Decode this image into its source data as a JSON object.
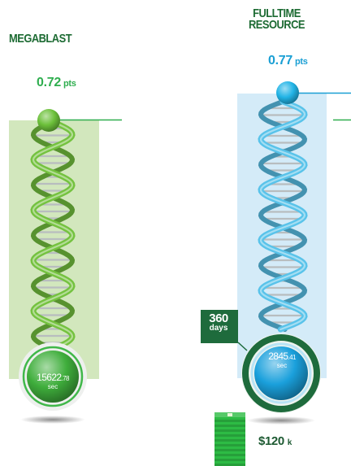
{
  "columns": [
    {
      "name_lines": [
        "MEGABLAST"
      ],
      "score_value": "0.72",
      "score_unit": "pts",
      "time_whole": "15622",
      "time_fraction": ".78",
      "time_unit": "sec",
      "colors": {
        "accent": "#2fae4f",
        "panel": "#d2e7bd",
        "helix": "#74c23f",
        "ball": "#3fae3c"
      }
    },
    {
      "name_lines": [
        "FULLTIME",
        "RESOURCE"
      ],
      "score_value": "0.77",
      "score_unit": "pts",
      "time_whole": "2845",
      "time_fraction": ".41",
      "time_unit": "sec",
      "duration_value": "360",
      "duration_unit": "days",
      "cost_value": "$120",
      "cost_unit": "k",
      "colors": {
        "accent": "#1a9fd4",
        "panel": "#d4ebf8",
        "helix": "#59c3ea",
        "ball": "#1aa0dc",
        "ring": "#1e6b3c",
        "money": "#2dbb44"
      }
    }
  ]
}
